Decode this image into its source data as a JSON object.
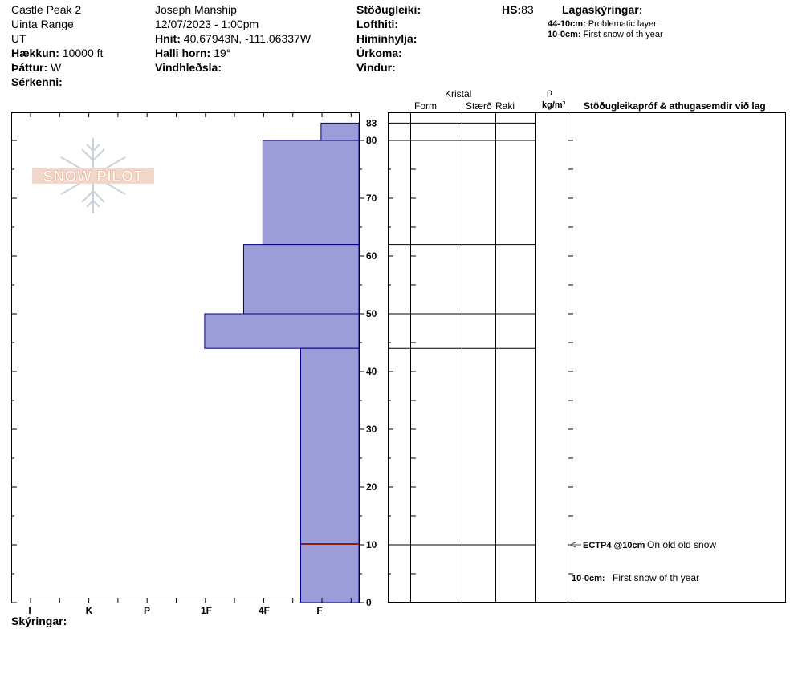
{
  "header": {
    "location": "Castle Peak 2",
    "range": "Uinta Range",
    "state": "UT",
    "elevation_label": "Hækkun:",
    "elevation_value": "10000 ft",
    "aspect_label": "Þáttur:",
    "aspect_value": "W",
    "features_label": "Sérkenni:",
    "observer": "Joseph Manship",
    "datetime": "12/07/2023 - 1:00pm",
    "coords_label": "Hnit:",
    "coords_value": "40.67943N, -111.06337W",
    "slope_label": "Halli horn:",
    "slope_value": "19°",
    "wind_loading_label": "Vindhleðsla:",
    "stability_label": "Stöðugleiki:",
    "air_temp_label": "Lofthiti:",
    "sky_label": "Himinhylja:",
    "precip_label": "Úrkoma:",
    "wind_label": "Vindur:",
    "hs_label": "HS:",
    "hs_value": "83",
    "layer_notes_title": "Lagaskýringar:",
    "layer_notes": [
      {
        "range": "44-10cm:",
        "text": "Problematic layer"
      },
      {
        "range": "10-0cm:",
        "text": "First snow of th year"
      }
    ]
  },
  "columns": {
    "crystal": "Kristal",
    "form": "Form",
    "size": "Stærð",
    "moisture": "Raki",
    "rho": "ρ",
    "density_unit": "kg/m³",
    "comments": "Stöðugleikapróf & athugasemdir við lag"
  },
  "footer": {
    "notes_label": "Skýringar:"
  },
  "logo": {
    "text": "SNOW PILOT"
  },
  "colors": {
    "bar_fill": "#9c9cd8",
    "bar_stroke": "#000080",
    "test_line": "#8b1a1a"
  },
  "chart_data": {
    "type": "bar",
    "orientation": "horizontal",
    "description_axis": "hardness",
    "hardness_ticks": [
      "I",
      "K",
      "P",
      "1F",
      "4F",
      "F"
    ],
    "depth_ticks": [
      0,
      10,
      20,
      30,
      40,
      50,
      60,
      70,
      80,
      83
    ],
    "depth_range": [
      0,
      83
    ],
    "layers": [
      {
        "top": 83,
        "bottom": 80,
        "hardness_units": 0.65
      },
      {
        "top": 80,
        "bottom": 62,
        "hardness_units": 1.65
      },
      {
        "top": 62,
        "bottom": 50,
        "hardness_units": 1.98
      },
      {
        "top": 50,
        "bottom": 44,
        "hardness_units": 2.65
      },
      {
        "top": 44,
        "bottom": 0,
        "hardness_units": 1.0
      }
    ],
    "stability_tests": [
      {
        "depth": 10,
        "code": "ECTP4 @10cm",
        "comment": "On old old snow"
      }
    ],
    "layer_comments": [
      {
        "depth_label": "10-0cm:",
        "text": "First snow of th year",
        "depth": 5
      }
    ]
  }
}
